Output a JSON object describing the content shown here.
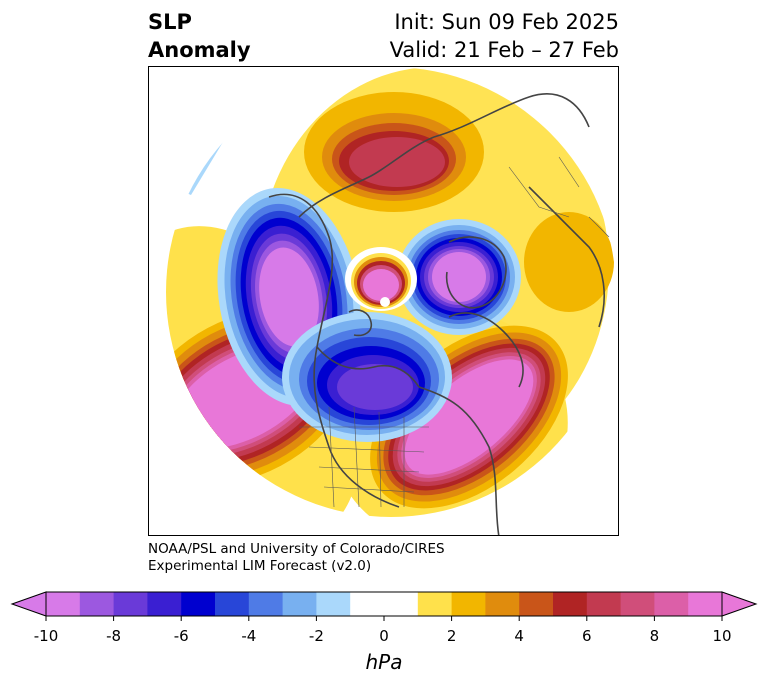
{
  "title": {
    "left_line1": "SLP",
    "left_line2": "Anomaly",
    "right_line1": "Init: Sun 09 Feb 2025",
    "right_line2": "Valid: 21 Feb – 27 Feb"
  },
  "credit": {
    "line1": "NOAA/PSL and University of Colorado/CIRES",
    "line2": "Experimental LIM Forecast (v2.0)"
  },
  "colorbar": {
    "unit": "hPa",
    "extend": "both",
    "ticks": [
      "-10",
      "-8",
      "-6",
      "-4",
      "-2",
      "0",
      "2",
      "4",
      "6",
      "8",
      "10"
    ],
    "levels": [
      -10,
      -9,
      -8,
      -7,
      -6,
      -5,
      -4,
      -3,
      -2,
      -1,
      1,
      2,
      3,
      4,
      5,
      6,
      7,
      8,
      9,
      10
    ],
    "colors": [
      "#d77ae8",
      "#9c58e0",
      "#6a3ad8",
      "#3a1fd2",
      "#0000cf",
      "#2846d8",
      "#4f7be6",
      "#78b0f0",
      "#aad8fb",
      "#ffffff",
      "#ffe14b",
      "#f2b600",
      "#e08c0d",
      "#c95519",
      "#b02424",
      "#c23a50",
      "#d04e7a",
      "#dc5fa8",
      "#e877d8"
    ]
  },
  "map": {
    "projection": "north-polar-stereographic",
    "features": [
      {
        "name": "positive-anomaly-north-pacific",
        "level": "above +10 hPa"
      },
      {
        "name": "positive-anomaly-western-atlantic",
        "level": "above +10 hPa"
      },
      {
        "name": "positive-anomaly-northern-eurasia",
        "level": "+7 to +8 hPa"
      },
      {
        "name": "negative-anomaly-western-canada",
        "level": "below -10 hPa"
      },
      {
        "name": "negative-anomaly-hudson-bay",
        "level": "-7 to -8 hPa"
      },
      {
        "name": "negative-anomaly-north-atlantic",
        "level": "below -10 hPa"
      },
      {
        "name": "positive-anomaly-arctic-center",
        "level": "above +10 hPa"
      }
    ]
  }
}
